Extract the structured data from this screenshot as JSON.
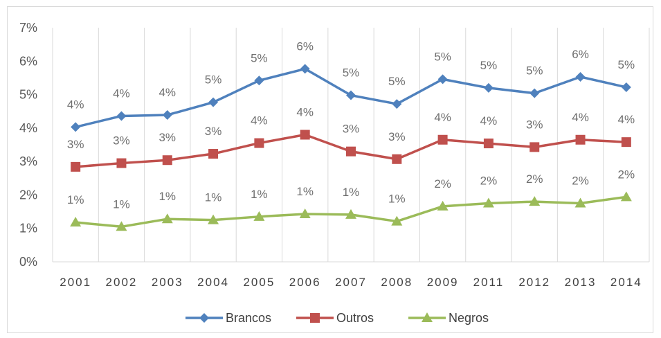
{
  "chart_data": {
    "type": "line",
    "title": "",
    "xlabel": "",
    "ylabel": "",
    "categories": [
      "2001",
      "2002",
      "2003",
      "2004",
      "2005",
      "2006",
      "2007",
      "2008",
      "2009",
      "2011",
      "2012",
      "2013",
      "2014"
    ],
    "yticks": [
      "0%",
      "1%",
      "2%",
      "3%",
      "4%",
      "5%",
      "6%",
      "7%"
    ],
    "ylim": [
      0,
      7
    ],
    "grid": "vertical",
    "legend": "bottom",
    "series": [
      {
        "name": "Brancos",
        "color": "#4f81bd",
        "marker": "diamond",
        "values": [
          4.03,
          4.36,
          4.39,
          4.77,
          5.42,
          5.77,
          4.98,
          4.72,
          5.46,
          5.2,
          5.04,
          5.53,
          5.22
        ],
        "labels": [
          "4%",
          "4%",
          "4%",
          "5%",
          "5%",
          "6%",
          "5%",
          "5%",
          "5%",
          "5%",
          "5%",
          "6%",
          "5%"
        ]
      },
      {
        "name": "Outros",
        "color": "#c0504d",
        "marker": "square",
        "values": [
          2.84,
          2.95,
          3.04,
          3.23,
          3.55,
          3.8,
          3.3,
          3.07,
          3.65,
          3.54,
          3.43,
          3.65,
          3.58
        ],
        "labels": [
          "3%",
          "3%",
          "3%",
          "3%",
          "4%",
          "4%",
          "3%",
          "3%",
          "4%",
          "4%",
          "3%",
          "4%",
          "4%"
        ]
      },
      {
        "name": "Negros",
        "color": "#9bbb59",
        "marker": "triangle",
        "values": [
          1.18,
          1.05,
          1.28,
          1.25,
          1.35,
          1.43,
          1.41,
          1.21,
          1.66,
          1.75,
          1.8,
          1.75,
          1.94
        ],
        "labels": [
          "1%",
          "1%",
          "1%",
          "1%",
          "1%",
          "1%",
          "1%",
          "1%",
          "2%",
          "2%",
          "2%",
          "2%",
          "2%"
        ]
      }
    ]
  }
}
